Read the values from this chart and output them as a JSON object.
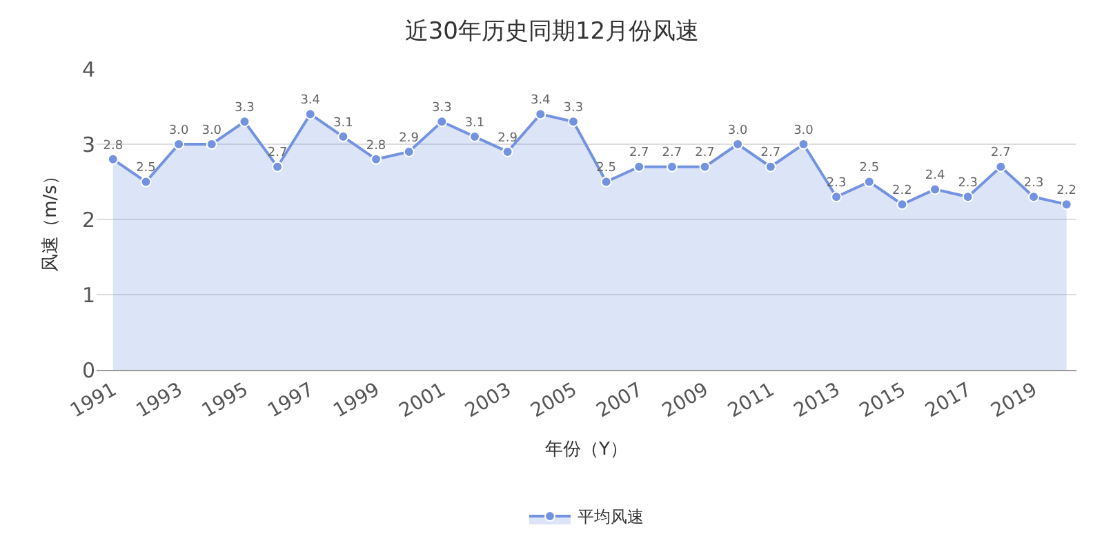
{
  "chart_data": {
    "type": "area",
    "title": "近30年历史同期12月份风速",
    "xlabel": "年份（Y）",
    "ylabel": "风速（m/s）",
    "x": [
      1991,
      1992,
      1993,
      1994,
      1995,
      1996,
      1997,
      1998,
      1999,
      2000,
      2001,
      2002,
      2003,
      2004,
      2005,
      2006,
      2007,
      2008,
      2009,
      2010,
      2011,
      2012,
      2013,
      2014,
      2015,
      2016,
      2017,
      2018,
      2019,
      2020
    ],
    "series": [
      {
        "name": "平均风速",
        "color": "#7392e0",
        "values": [
          2.8,
          2.5,
          3.0,
          3.0,
          3.3,
          2.7,
          3.4,
          3.1,
          2.8,
          2.9,
          3.3,
          3.1,
          2.9,
          3.4,
          3.3,
          2.5,
          2.7,
          2.7,
          2.7,
          3.0,
          2.7,
          3.0,
          2.3,
          2.5,
          2.2,
          2.4,
          2.3,
          2.7,
          2.3,
          2.2
        ],
        "value_labels": [
          "2.8",
          "2.5",
          "3.0",
          "3.0",
          "3.3",
          "2.7",
          "3.4",
          "3.1",
          "2.8",
          "2.9",
          "3.3",
          "3.1",
          "2.9",
          "3.4",
          "3.3",
          "2.5",
          "2.7",
          "2.7",
          "2.7",
          "3.0",
          "2.7",
          "3.0",
          "2.3",
          "2.5",
          "2.2",
          "2.4",
          "2.3",
          "2.7",
          "2.3",
          "2.2"
        ]
      }
    ],
    "xlim": [
      1990.5,
      2020.3
    ],
    "xticks": [
      1991,
      1993,
      1995,
      1997,
      1999,
      2001,
      2003,
      2005,
      2007,
      2009,
      2011,
      2013,
      2015,
      2017,
      2019
    ],
    "ylim": [
      0,
      4
    ],
    "yticks": [
      0,
      1,
      2,
      3,
      4
    ],
    "grid": "y",
    "legend": "bottom",
    "marker": "circle",
    "line_style": "solid"
  }
}
